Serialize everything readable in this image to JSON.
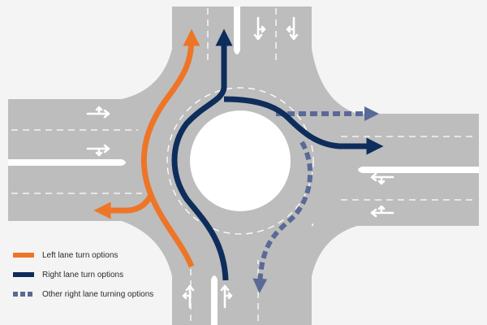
{
  "colors": {
    "background": "#f4f4f4",
    "road": "#bdbdbd",
    "island": "#ffffff",
    "lane_marking": "#ffffff",
    "left_lane": "#ee7527",
    "right_lane": "#0e2d5c",
    "other_right_lane": "#5a6a96"
  },
  "legend": {
    "left_lane": "Left lane turn options",
    "right_lane": "Right lane turn options",
    "other_right_lane": "Other right lane turning options"
  }
}
